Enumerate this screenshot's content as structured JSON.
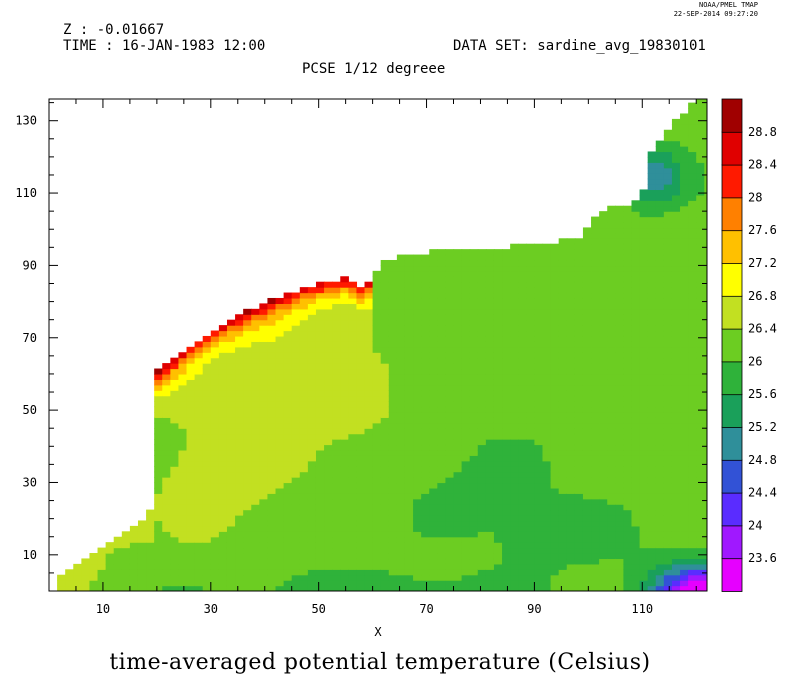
{
  "header": {
    "z_label": "Z : -0.01667",
    "time_label": "TIME : 16-JAN-1983 12:00",
    "dataset_label": "DATA SET: sardine_avg_19830101",
    "plot_title": "PCSE 1/12 degreee",
    "credit_line1": "NOAA/PMEL TMAP",
    "credit_line2": "22-SEP-2014 09:27:20"
  },
  "chart_data": {
    "type": "heatmap",
    "title": "PCSE 1/12 degreee",
    "xlabel": "X",
    "ylabel": "",
    "xlim": [
      0,
      122
    ],
    "ylim": [
      0,
      136
    ],
    "x_ticks": [
      10,
      30,
      50,
      70,
      90,
      110
    ],
    "y_ticks": [
      10,
      30,
      50,
      70,
      90,
      110,
      130
    ],
    "colorbar_label": "time-averaged potential temperature (Celsius)",
    "colorbar_levels": [
      23.6,
      24,
      24.4,
      24.8,
      25.2,
      25.6,
      26,
      26.4,
      26.8,
      27.2,
      27.6,
      28,
      28.4,
      28.8
    ],
    "colorbar_colors": [
      "#e600ff",
      "#a018ff",
      "#5a2cff",
      "#3252d6",
      "#2f8f9a",
      "#1aa05a",
      "#2fb23a",
      "#6ccd22",
      "#c2e021",
      "#ffff00",
      "#ffc000",
      "#ff8000",
      "#ff1a00",
      "#e00000",
      "#a00000"
    ],
    "land_boundary_top": [
      [
        1,
        3
      ],
      [
        4,
        6
      ],
      [
        8,
        10
      ],
      [
        12,
        14
      ],
      [
        16,
        17
      ],
      [
        18,
        19
      ],
      [
        19,
        22
      ],
      [
        20,
        28
      ],
      [
        20,
        35
      ],
      [
        20,
        42
      ],
      [
        20,
        48
      ],
      [
        19,
        52
      ],
      [
        19,
        56
      ],
      [
        20,
        60
      ],
      [
        26,
        67
      ],
      [
        33,
        74
      ],
      [
        40,
        79
      ],
      [
        47,
        83
      ],
      [
        52,
        85
      ],
      [
        56,
        86
      ],
      [
        57,
        83
      ],
      [
        60,
        85
      ],
      [
        62,
        91
      ],
      [
        70,
        93
      ],
      [
        80,
        94
      ],
      [
        90,
        95
      ],
      [
        99,
        97
      ],
      [
        101,
        103
      ],
      [
        104,
        105
      ],
      [
        110,
        107
      ],
      [
        111,
        120
      ],
      [
        114,
        126
      ],
      [
        118,
        132
      ],
      [
        120,
        135
      ],
      [
        122,
        136
      ]
    ],
    "field_description": "warm (27.6-28.8) band along northwestern coast near x 19-55, y 55-85; cooling offshore to 26.0-26.6 central; coolest 23.6-24.8 in southeast corner x 105-122, y 0-12; 25.2 patch near x 112, y 110-120"
  }
}
